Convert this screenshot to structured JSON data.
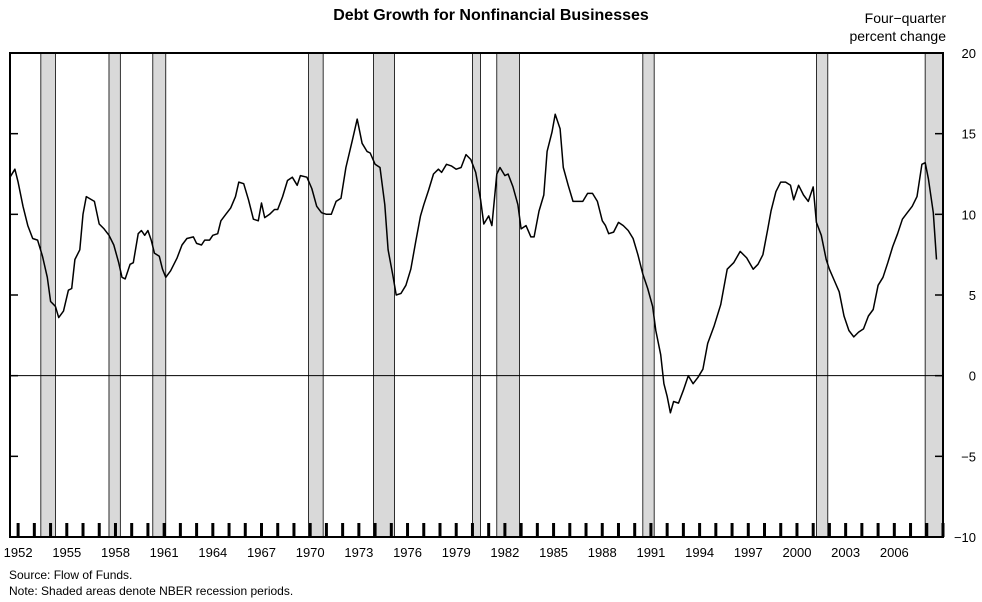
{
  "chart_data": {
    "type": "line",
    "title": "Debt Growth for Nonfinancial Businesses",
    "ylabel_lines": [
      "Four−quarter",
      "percent change"
    ],
    "ylim": [
      -10,
      20
    ],
    "xlim": [
      1951.5,
      2009.0
    ],
    "y_ticks": [
      "20",
      "15",
      "10",
      "5",
      "0",
      "−5",
      "−10"
    ],
    "y_tick_values": [
      20,
      15,
      10,
      5,
      0,
      -5,
      -10
    ],
    "x_tick_labels": [
      "1952",
      "1955",
      "1958",
      "1961",
      "1964",
      "1967",
      "1970",
      "1973",
      "1976",
      "1979",
      "1982",
      "1985",
      "1988",
      "1991",
      "1994",
      "1997",
      "2000",
      "2003",
      "2006"
    ],
    "x_tick_values": [
      1952,
      1955,
      1958,
      1961,
      1964,
      1967,
      1970,
      1973,
      1976,
      1979,
      1982,
      1985,
      1988,
      1991,
      1994,
      1997,
      2000,
      2003,
      2006
    ],
    "grid": false,
    "zero_line": true,
    "recessions": [
      [
        1953.4,
        1954.3
      ],
      [
        1957.6,
        1958.3
      ],
      [
        1960.3,
        1961.1
      ],
      [
        1969.9,
        1970.8
      ],
      [
        1973.9,
        1975.2
      ],
      [
        1980.0,
        1980.5
      ],
      [
        1981.5,
        1982.9
      ],
      [
        1990.5,
        1991.2
      ],
      [
        2001.2,
        2001.9
      ],
      [
        2007.9,
        2009.0
      ]
    ],
    "series": [
      {
        "values": [
          [
            1951.5,
            12.3
          ],
          [
            1951.8,
            12.8
          ],
          [
            1952.0,
            12.0
          ],
          [
            1952.3,
            10.5
          ],
          [
            1952.6,
            9.3
          ],
          [
            1952.9,
            8.5
          ],
          [
            1953.2,
            8.4
          ],
          [
            1953.5,
            7.4
          ],
          [
            1953.8,
            6.1
          ],
          [
            1954.0,
            4.6
          ],
          [
            1954.3,
            4.3
          ],
          [
            1954.5,
            3.6
          ],
          [
            1954.8,
            4.0
          ],
          [
            1955.1,
            5.3
          ],
          [
            1955.3,
            5.4
          ],
          [
            1955.5,
            7.2
          ],
          [
            1955.8,
            7.8
          ],
          [
            1956.0,
            10.0
          ],
          [
            1956.2,
            11.1
          ],
          [
            1956.7,
            10.8
          ],
          [
            1957.0,
            9.4
          ],
          [
            1957.3,
            9.1
          ],
          [
            1957.6,
            8.7
          ],
          [
            1957.9,
            8.1
          ],
          [
            1958.2,
            7.0
          ],
          [
            1958.4,
            6.1
          ],
          [
            1958.6,
            6.0
          ],
          [
            1958.9,
            6.9
          ],
          [
            1959.1,
            7.0
          ],
          [
            1959.4,
            8.8
          ],
          [
            1959.6,
            9.0
          ],
          [
            1959.8,
            8.7
          ],
          [
            1960.0,
            9.0
          ],
          [
            1960.2,
            8.4
          ],
          [
            1960.4,
            7.6
          ],
          [
            1960.7,
            7.4
          ],
          [
            1960.9,
            6.6
          ],
          [
            1961.1,
            6.1
          ],
          [
            1961.4,
            6.5
          ],
          [
            1961.8,
            7.3
          ],
          [
            1962.1,
            8.1
          ],
          [
            1962.4,
            8.5
          ],
          [
            1962.8,
            8.6
          ],
          [
            1963.0,
            8.2
          ],
          [
            1963.3,
            8.1
          ],
          [
            1963.5,
            8.4
          ],
          [
            1963.8,
            8.4
          ],
          [
            1964.0,
            8.7
          ],
          [
            1964.3,
            8.8
          ],
          [
            1964.5,
            9.6
          ],
          [
            1964.8,
            10.0
          ],
          [
            1965.1,
            10.4
          ],
          [
            1965.4,
            11.1
          ],
          [
            1965.6,
            12.0
          ],
          [
            1965.9,
            11.9
          ],
          [
            1966.2,
            10.9
          ],
          [
            1966.5,
            9.7
          ],
          [
            1966.8,
            9.6
          ],
          [
            1967.0,
            10.7
          ],
          [
            1967.2,
            9.8
          ],
          [
            1967.5,
            10.0
          ],
          [
            1967.8,
            10.3
          ],
          [
            1968.0,
            10.3
          ],
          [
            1968.3,
            11.1
          ],
          [
            1968.6,
            12.1
          ],
          [
            1968.9,
            12.3
          ],
          [
            1969.2,
            11.8
          ],
          [
            1969.4,
            12.4
          ],
          [
            1969.8,
            12.3
          ],
          [
            1970.1,
            11.6
          ],
          [
            1970.4,
            10.5
          ],
          [
            1970.7,
            10.1
          ],
          [
            1971.0,
            10.0
          ],
          [
            1971.3,
            10.0
          ],
          [
            1971.6,
            10.8
          ],
          [
            1971.9,
            11.0
          ],
          [
            1972.2,
            12.9
          ],
          [
            1972.6,
            14.6
          ],
          [
            1972.9,
            15.9
          ],
          [
            1973.2,
            14.4
          ],
          [
            1973.5,
            13.9
          ],
          [
            1973.7,
            13.8
          ],
          [
            1974.0,
            13.1
          ],
          [
            1974.3,
            12.9
          ],
          [
            1974.6,
            10.6
          ],
          [
            1974.8,
            7.8
          ],
          [
            1975.1,
            6.2
          ],
          [
            1975.3,
            5.0
          ],
          [
            1975.6,
            5.1
          ],
          [
            1975.9,
            5.6
          ],
          [
            1976.2,
            6.6
          ],
          [
            1976.5,
            8.3
          ],
          [
            1976.8,
            9.9
          ],
          [
            1977.0,
            10.6
          ],
          [
            1977.3,
            11.5
          ],
          [
            1977.6,
            12.5
          ],
          [
            1977.9,
            12.8
          ],
          [
            1978.1,
            12.6
          ],
          [
            1978.4,
            13.1
          ],
          [
            1978.7,
            13.0
          ],
          [
            1979.0,
            12.8
          ],
          [
            1979.3,
            12.9
          ],
          [
            1979.6,
            13.7
          ],
          [
            1979.9,
            13.4
          ],
          [
            1980.2,
            12.6
          ],
          [
            1980.5,
            10.9
          ],
          [
            1980.7,
            9.4
          ],
          [
            1981.0,
            9.9
          ],
          [
            1981.2,
            9.3
          ],
          [
            1981.5,
            12.5
          ],
          [
            1981.7,
            12.9
          ],
          [
            1982.0,
            12.4
          ],
          [
            1982.2,
            12.5
          ],
          [
            1982.5,
            11.7
          ],
          [
            1982.8,
            10.6
          ],
          [
            1983.0,
            9.1
          ],
          [
            1983.3,
            9.3
          ],
          [
            1983.6,
            8.6
          ],
          [
            1983.8,
            8.6
          ],
          [
            1984.1,
            10.2
          ],
          [
            1984.4,
            11.2
          ],
          [
            1984.6,
            13.9
          ],
          [
            1984.9,
            15.1
          ],
          [
            1985.1,
            16.2
          ],
          [
            1985.4,
            15.3
          ],
          [
            1985.6,
            12.9
          ],
          [
            1985.9,
            11.8
          ],
          [
            1986.2,
            10.8
          ],
          [
            1986.5,
            10.8
          ],
          [
            1986.8,
            10.8
          ],
          [
            1987.1,
            11.3
          ],
          [
            1987.4,
            11.3
          ],
          [
            1987.7,
            10.8
          ],
          [
            1988.0,
            9.6
          ],
          [
            1988.2,
            9.3
          ],
          [
            1988.4,
            8.8
          ],
          [
            1988.7,
            8.9
          ],
          [
            1989.0,
            9.5
          ],
          [
            1989.3,
            9.3
          ],
          [
            1989.6,
            9.0
          ],
          [
            1989.9,
            8.5
          ],
          [
            1990.2,
            7.5
          ],
          [
            1990.5,
            6.3
          ],
          [
            1990.8,
            5.4
          ],
          [
            1991.1,
            4.3
          ],
          [
            1991.3,
            2.8
          ],
          [
            1991.6,
            1.3
          ],
          [
            1991.8,
            -0.5
          ],
          [
            1992.0,
            -1.3
          ],
          [
            1992.2,
            -2.3
          ],
          [
            1992.4,
            -1.6
          ],
          [
            1992.7,
            -1.7
          ],
          [
            1993.0,
            -0.9
          ],
          [
            1993.3,
            0.0
          ],
          [
            1993.6,
            -0.5
          ],
          [
            1993.9,
            -0.1
          ],
          [
            1994.2,
            0.4
          ],
          [
            1994.5,
            2.0
          ],
          [
            1994.9,
            3.1
          ],
          [
            1995.3,
            4.4
          ],
          [
            1995.7,
            6.6
          ],
          [
            1996.1,
            7.0
          ],
          [
            1996.5,
            7.7
          ],
          [
            1996.9,
            7.3
          ],
          [
            1997.3,
            6.6
          ],
          [
            1997.6,
            6.9
          ],
          [
            1997.9,
            7.5
          ],
          [
            1998.2,
            9.1
          ],
          [
            1998.4,
            10.2
          ],
          [
            1998.7,
            11.4
          ],
          [
            1999.0,
            12.0
          ],
          [
            1999.3,
            12.0
          ],
          [
            1999.6,
            11.8
          ],
          [
            1999.8,
            10.9
          ],
          [
            2000.1,
            11.8
          ],
          [
            2000.4,
            11.2
          ],
          [
            2000.7,
            10.8
          ],
          [
            2001.0,
            11.7
          ],
          [
            2001.2,
            9.5
          ],
          [
            2001.5,
            8.7
          ],
          [
            2001.8,
            7.2
          ],
          [
            2002.0,
            6.6
          ],
          [
            2002.3,
            5.9
          ],
          [
            2002.6,
            5.2
          ],
          [
            2002.9,
            3.7
          ],
          [
            2003.2,
            2.8
          ],
          [
            2003.5,
            2.4
          ],
          [
            2003.8,
            2.7
          ],
          [
            2004.1,
            2.9
          ],
          [
            2004.4,
            3.7
          ],
          [
            2004.7,
            4.1
          ],
          [
            2005.0,
            5.6
          ],
          [
            2005.3,
            6.1
          ],
          [
            2005.6,
            7.0
          ],
          [
            2005.9,
            8.0
          ],
          [
            2006.2,
            8.8
          ],
          [
            2006.5,
            9.7
          ],
          [
            2006.8,
            10.1
          ],
          [
            2007.1,
            10.5
          ],
          [
            2007.4,
            11.1
          ],
          [
            2007.7,
            13.1
          ],
          [
            2007.9,
            13.2
          ],
          [
            2008.1,
            12.2
          ],
          [
            2008.4,
            10.1
          ],
          [
            2008.6,
            7.2
          ]
        ]
      }
    ]
  },
  "notes": {
    "source": "Source: Flow of Funds.",
    "note": "Note: Shaded areas denote NBER recession periods."
  }
}
